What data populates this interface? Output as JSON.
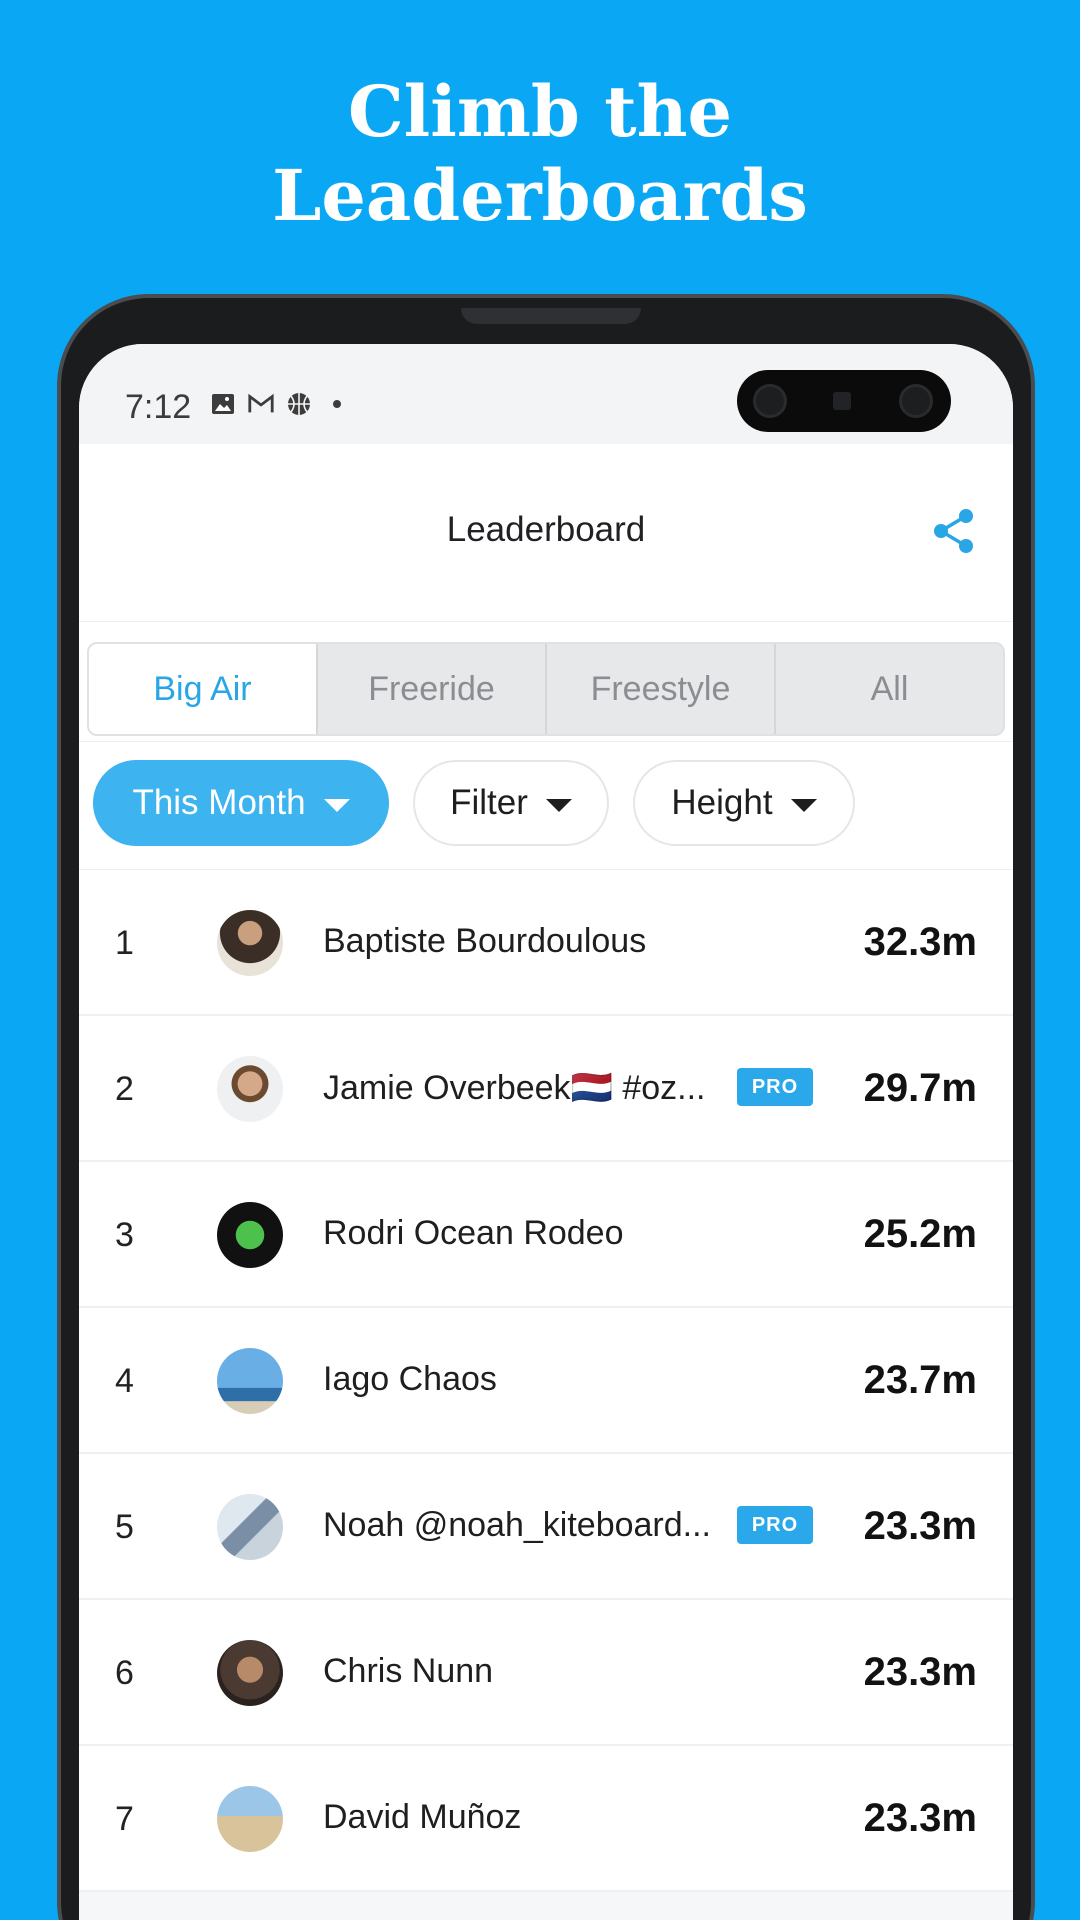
{
  "promo": {
    "headline_line1": "Climb the",
    "headline_line2": "Leaderboards"
  },
  "status_bar": {
    "time": "7:12",
    "icons": [
      "image-icon",
      "gmail-icon",
      "basketball-icon",
      "dot-icon"
    ]
  },
  "app_bar": {
    "title": "Leaderboard",
    "share_icon": "share-icon"
  },
  "tabs": [
    {
      "label": "Big Air",
      "active": true
    },
    {
      "label": "Freeride",
      "active": false
    },
    {
      "label": "Freestyle",
      "active": false
    },
    {
      "label": "All",
      "active": false
    }
  ],
  "filters": {
    "period": "This Month",
    "filter": "Filter",
    "metric": "Height"
  },
  "leaderboard": [
    {
      "rank": "1",
      "name": "Baptiste Bourdoulous",
      "pro": false,
      "score": "32.3m",
      "avatar_color": "#3a2e26"
    },
    {
      "rank": "2",
      "name": "Jamie Overbeek🇳🇱 #oz...",
      "pro": true,
      "pro_label": "PRO",
      "score": "29.7m",
      "avatar_color": "#b69a82"
    },
    {
      "rank": "3",
      "name": "Rodri Ocean Rodeo",
      "pro": false,
      "score": "25.2m",
      "avatar_color": "#111111"
    },
    {
      "rank": "4",
      "name": "Iago Chaos",
      "pro": false,
      "score": "23.7m",
      "avatar_color": "#5a9ad6"
    },
    {
      "rank": "5",
      "name": "Noah @noah_kiteboard...",
      "pro": true,
      "pro_label": "PRO",
      "score": "23.3m",
      "avatar_color": "#a8b8c8"
    },
    {
      "rank": "6",
      "name": "Chris Nunn",
      "pro": false,
      "score": "23.3m",
      "avatar_color": "#4a3a32"
    },
    {
      "rank": "7",
      "name": "David Muñoz",
      "pro": false,
      "score": "23.3m",
      "avatar_color": "#c8b08a"
    }
  ],
  "colors": {
    "background": "#0AA8F4",
    "accent": "#2AA5E6",
    "chip_active": "#3DB3EF"
  }
}
